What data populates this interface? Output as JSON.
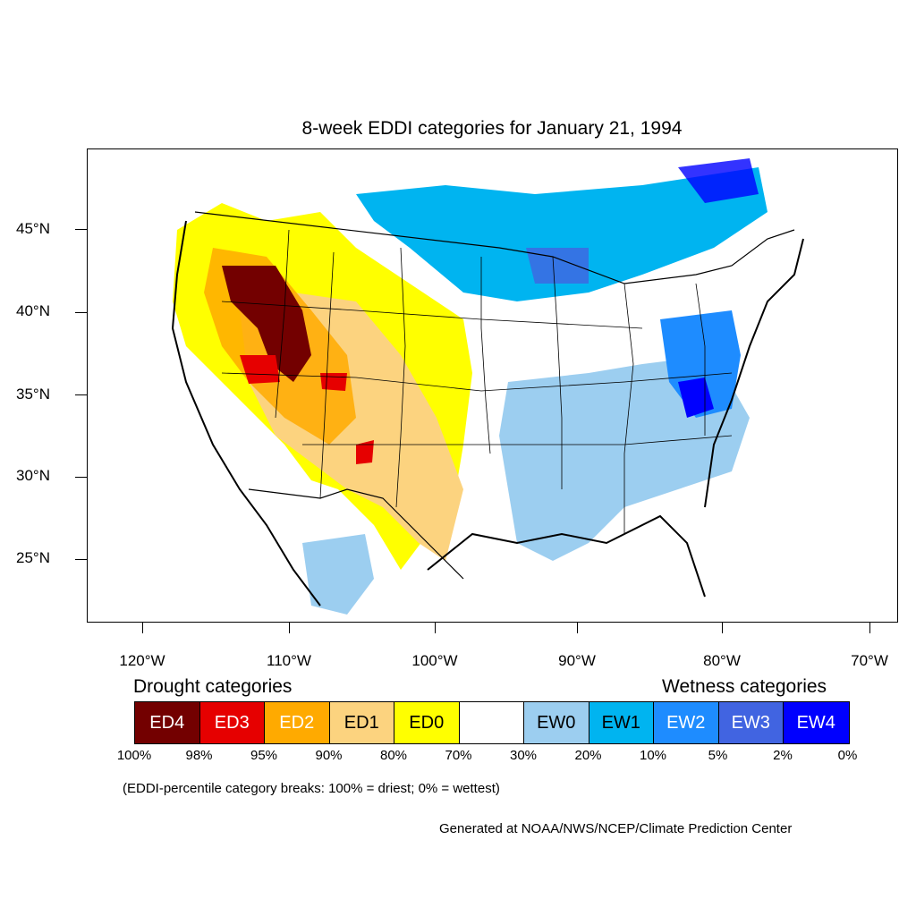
{
  "title": "8-week EDDI categories for January 21, 1994",
  "lat_labels": [
    "45°N",
    "40°N",
    "35°N",
    "30°N",
    "25°N"
  ],
  "lon_labels": [
    "120°W",
    "110°W",
    "100°W",
    "90°W",
    "80°W",
    "70°W"
  ],
  "drought_heading": "Drought categories",
  "wetness_heading": "Wetness categories",
  "categories": [
    {
      "label": "ED4",
      "color": "#730000",
      "text_color": "#ffffff"
    },
    {
      "label": "ED3",
      "color": "#e60000",
      "text_color": "#ffffff"
    },
    {
      "label": "ED2",
      "color": "#ffaa00",
      "text_color": "#ffffff"
    },
    {
      "label": "ED1",
      "color": "#fcd37f",
      "text_color": "#000000"
    },
    {
      "label": "ED0",
      "color": "#ffff00",
      "text_color": "#000000"
    },
    {
      "label": "",
      "color": "#ffffff",
      "text_color": "#000000"
    },
    {
      "label": "EW0",
      "color": "#9ccef0",
      "text_color": "#000000"
    },
    {
      "label": "EW1",
      "color": "#00b4f0",
      "text_color": "#000000"
    },
    {
      "label": "EW2",
      "color": "#1e8cff",
      "text_color": "#ffffff"
    },
    {
      "label": "EW3",
      "color": "#4164e1",
      "text_color": "#ffffff"
    },
    {
      "label": "EW4",
      "color": "#0000ff",
      "text_color": "#ffffff"
    }
  ],
  "percent_breaks": [
    "100%",
    "98%",
    "95%",
    "90%",
    "80%",
    "70%",
    "30%",
    "20%",
    "10%",
    "5%",
    "2%",
    "0%"
  ],
  "note": "(EDDI-percentile category breaks: 100% = driest; 0% = wettest)",
  "credit": "Generated at NOAA/NWS/NCEP/Climate Prediction Center"
}
